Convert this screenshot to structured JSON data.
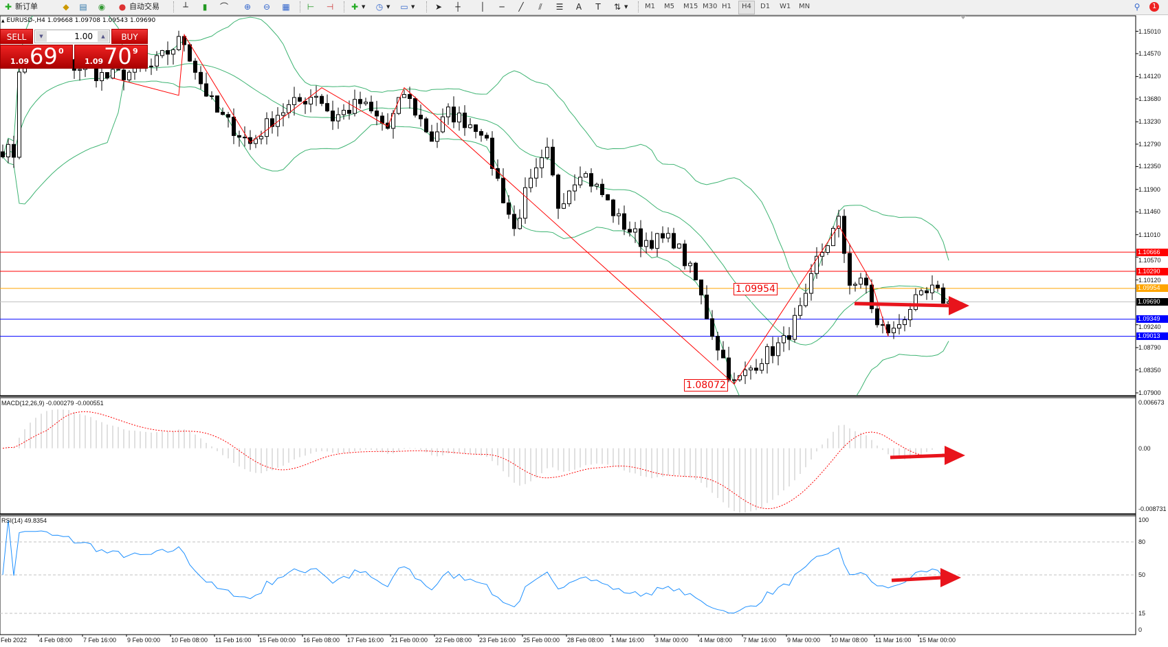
{
  "toolbar": {
    "new_order_label": "新订单",
    "auto_trading_label": "自动交易",
    "timeframes": [
      "M1",
      "M5",
      "M15",
      "M30",
      "H1",
      "H4",
      "D1",
      "W1",
      "MN"
    ],
    "active_timeframe": "H4",
    "notification_count": "1"
  },
  "chart_header": "EURUSD-,H4  1.09668 1.09708 1.09543 1.09690",
  "trade_panel": {
    "sell_label": "SELL",
    "buy_label": "BUY",
    "lot_value": "1.00",
    "sell_price": {
      "prefix": "1.09",
      "big": "69",
      "sup": "0"
    },
    "buy_price": {
      "prefix": "1.09",
      "big": "70",
      "sup": "9"
    }
  },
  "price_axis": {
    "ticks": [
      "1.15010",
      "1.14570",
      "1.14120",
      "1.13680",
      "1.13230",
      "1.12790",
      "1.12350",
      "1.11900",
      "1.11460",
      "1.11010",
      "1.10570",
      "1.10120",
      "1.09240",
      "1.08790",
      "1.08350",
      "1.07900"
    ],
    "range": [
      1.079,
      1.1501
    ]
  },
  "levels": [
    {
      "price": "1.10666",
      "color": "#ff0000",
      "type": "horizontal-line"
    },
    {
      "price": "1.10290",
      "color": "#ff0000",
      "type": "horizontal-line"
    },
    {
      "price": "1.09954",
      "color": "#ffa500",
      "type": "horizontal-line"
    },
    {
      "price": "1.09690",
      "color": "#000000",
      "type": "bid-line"
    },
    {
      "price": "1.09349",
      "color": "#0000ff",
      "type": "horizontal-line"
    },
    {
      "price": "1.09013",
      "color": "#0000ff",
      "type": "horizontal-line"
    }
  ],
  "price_labels": [
    {
      "text": "1.09954"
    },
    {
      "text": "1.08072"
    }
  ],
  "chart_data": {
    "type": "candlestick",
    "symbol": "EURUSD-",
    "timeframe": "H4",
    "price_path": [
      [
        0,
        1.127
      ],
      [
        2,
        1.126
      ],
      [
        3,
        1.143
      ],
      [
        6,
        1.145
      ],
      [
        14,
        1.143
      ],
      [
        19,
        1.141
      ],
      [
        27,
        1.143
      ],
      [
        32,
        1.148
      ],
      [
        33,
        1.148
      ],
      [
        36,
        1.14
      ],
      [
        39,
        1.134
      ],
      [
        45,
        1.128
      ],
      [
        50,
        1.134
      ],
      [
        57,
        1.138
      ],
      [
        60,
        1.133
      ],
      [
        65,
        1.136
      ],
      [
        70,
        1.131
      ],
      [
        73,
        1.138
      ],
      [
        78,
        1.129
      ],
      [
        81,
        1.134
      ],
      [
        87,
        1.131
      ],
      [
        89,
        1.124
      ],
      [
        93,
        1.111
      ],
      [
        95,
        1.118
      ],
      [
        99,
        1.126
      ],
      [
        101,
        1.116
      ],
      [
        105,
        1.123
      ],
      [
        109,
        1.118
      ],
      [
        112,
        1.113
      ],
      [
        116,
        1.109
      ],
      [
        122,
        1.109
      ],
      [
        126,
        1.101
      ],
      [
        129,
        1.091
      ],
      [
        132,
        1.083
      ],
      [
        133,
        1.0807
      ],
      [
        138,
        1.086
      ],
      [
        142,
        1.089
      ],
      [
        146,
        1.097
      ],
      [
        148,
        1.105
      ],
      [
        152,
        1.1125
      ],
      [
        154,
        1.101
      ],
      [
        157,
        1.1
      ],
      [
        159,
        1.092
      ],
      [
        162,
        1.091
      ],
      [
        165,
        1.096
      ],
      [
        169,
        1.099
      ],
      [
        172,
        1.0969
      ]
    ],
    "zigzag": [
      [
        20,
        1.1409
      ],
      [
        32,
        1.1375
      ],
      [
        33,
        1.1494
      ],
      [
        45,
        1.1282
      ],
      [
        58,
        1.139
      ],
      [
        70,
        1.1314
      ],
      [
        73,
        1.139
      ],
      [
        133,
        1.08072
      ],
      [
        152,
        1.1119
      ],
      [
        158,
        1.1007
      ],
      [
        161,
        1.0901
      ]
    ],
    "bollinger_color": "#3cb371",
    "zigzag_color": "#ff0000",
    "time_labels": [
      "Feb 2022",
      "4 Feb 08:00",
      "7 Feb 16:00",
      "9 Feb 00:00",
      "10 Feb 08:00",
      "11 Feb 16:00",
      "15 Feb 00:00",
      "16 Feb 08:00",
      "17 Feb 16:00",
      "21 Feb 00:00",
      "22 Feb 08:00",
      "23 Feb 16:00",
      "25 Feb 00:00",
      "28 Feb 08:00",
      "1 Mar 16:00",
      "3 Mar 00:00",
      "4 Mar 08:00",
      "7 Mar 16:00",
      "9 Mar 00:00",
      "10 Mar 08:00",
      "11 Mar 16:00",
      "15 Mar 00:00"
    ]
  },
  "macd": {
    "label": "MACD(12,26,9) -0.000279 -0.000551",
    "ticks": [
      "0.006673",
      "0.00",
      "-0.008731"
    ],
    "range": [
      -0.008731,
      0.006673
    ],
    "signal_color": "#ff0000",
    "histogram_color": "#c0c0c0"
  },
  "rsi": {
    "label": "RSI(14) 49.8354",
    "ticks": [
      "100",
      "80",
      "50",
      "15",
      "0"
    ],
    "levels": [
      80,
      50,
      15
    ],
    "line_color": "#1e90ff"
  },
  "annotation_color": "#e8141c"
}
